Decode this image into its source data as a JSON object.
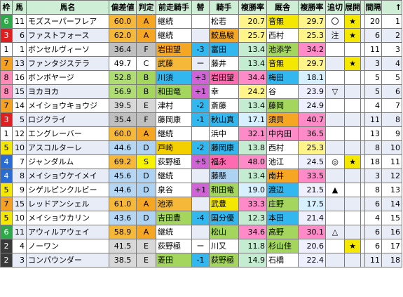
{
  "headers": [
    "枠",
    "馬",
    "馬名",
    "偏差値",
    "判定",
    "前走騎手",
    "替",
    "騎手",
    "複勝率",
    "厩舎",
    "複勝率",
    "追切",
    "展開",
    "",
    "間隔",
    "↑"
  ],
  "frame_colors": {
    "1": "#ffffff",
    "2": "#3a3a3a",
    "3": "#e02020",
    "4": "#2a6cd6",
    "5": "#f5e800",
    "6": "#2fa84a",
    "7": "#f5a020",
    "8": "#ff8ab8"
  },
  "rows": [
    {
      "frame": "6",
      "num": "11",
      "name": "モズスーパーフレア",
      "score": "60.0",
      "grade": "A",
      "prev": "継続",
      "change": "",
      "jockey": "松若",
      "jrate": "20.7",
      "stable": "音無",
      "srate": "29.7",
      "oikiri": "〇",
      "tenkai": "★",
      "gap": "",
      "interval": "20",
      "count": "1"
    },
    {
      "frame": "3",
      "num": "6",
      "name": "ファストフォース",
      "score": "62.0",
      "grade": "A",
      "prev": "継続",
      "change": "",
      "jockey": "鮫島駿",
      "jrate": "25.7",
      "stable": "西村",
      "srate": "25.3",
      "oikiri": "注",
      "tenkai": "★",
      "gap": "",
      "interval": "6",
      "count": "2"
    },
    {
      "frame": "1",
      "num": "1",
      "name": "ボンセルヴィーソ",
      "score": "36.4",
      "grade": "F",
      "prev": "岩田望",
      "change": "-3",
      "jockey": "富田",
      "jrate": "13.4",
      "stable": "池添学",
      "srate": "34.2",
      "oikiri": "",
      "tenkai": "",
      "gap": "",
      "interval": "11",
      "count": "3"
    },
    {
      "frame": "7",
      "num": "13",
      "name": "ファンタジステラ",
      "score": "49.7",
      "grade": "C",
      "prev": "武藤",
      "change": "ー",
      "jockey": "藤井",
      "jrate": "13.4",
      "stable": "音無",
      "srate": "29.7",
      "oikiri": "",
      "tenkai": "★",
      "gap": "",
      "interval": "3",
      "count": "4"
    },
    {
      "frame": "8",
      "num": "16",
      "name": "ボンボヤージ",
      "score": "52.8",
      "grade": "B",
      "prev": "川須",
      "change": "+3",
      "jockey": "岩田望",
      "jrate": "34.4",
      "stable": "梅田",
      "srate": "18.1",
      "oikiri": "",
      "tenkai": "",
      "gap": "",
      "interval": "5",
      "count": "5"
    },
    {
      "frame": "8",
      "num": "15",
      "name": "ヨカヨカ",
      "score": "56.9",
      "grade": "B",
      "prev": "和田竜",
      "change": "+1",
      "jockey": "幸",
      "jrate": "24.2",
      "stable": "谷",
      "srate": "23.9",
      "oikiri": "▽",
      "tenkai": "",
      "gap": "",
      "interval": "5",
      "count": "6"
    },
    {
      "frame": "7",
      "num": "14",
      "name": "メイショウキョウジ",
      "score": "39.5",
      "grade": "E",
      "prev": "津村",
      "change": "-2",
      "jockey": "斎藤",
      "jrate": "13.4",
      "stable": "藤岡",
      "srate": "24.9",
      "oikiri": "",
      "tenkai": "",
      "gap": "",
      "interval": "4",
      "count": "7"
    },
    {
      "frame": "3",
      "num": "5",
      "name": "ロジクライ",
      "score": "35.4",
      "grade": "F",
      "prev": "藤岡康",
      "change": "-1",
      "jockey": "秋山真",
      "jrate": "17.1",
      "stable": "須貝",
      "srate": "40.7",
      "oikiri": "",
      "tenkai": "",
      "gap": "",
      "interval": "11",
      "count": "8"
    },
    {
      "frame": "1",
      "num": "12",
      "name": "エングレーバー",
      "score": "60.0",
      "grade": "A",
      "prev": "継続",
      "change": "",
      "jockey": "浜中",
      "jrate": "32.1",
      "stable": "中内田",
      "srate": "36.5",
      "oikiri": "",
      "tenkai": "",
      "gap": "",
      "interval": "13",
      "count": "9"
    },
    {
      "frame": "5",
      "num": "10",
      "name": "アスコルターレ",
      "score": "44.6",
      "grade": "D",
      "prev": "戸崎",
      "change": "-2",
      "jockey": "藤岡康",
      "jrate": "13.8",
      "stable": "西村",
      "srate": "25.3",
      "oikiri": "",
      "tenkai": "",
      "gap": "",
      "interval": "8",
      "count": "10"
    },
    {
      "frame": "4",
      "num": "7",
      "name": "ジャンダルム",
      "score": "69.2",
      "grade": "S",
      "prev": "荻野極",
      "change": "+5",
      "jockey": "福永",
      "jrate": "48.0",
      "stable": "池江",
      "srate": "24.5",
      "oikiri": "◎",
      "tenkai": "★",
      "gap": "",
      "interval": "18",
      "count": "11"
    },
    {
      "frame": "4",
      "num": "8",
      "name": "メイショウケイメイ",
      "score": "45.6",
      "grade": "D",
      "prev": "継続",
      "change": "",
      "jockey": "藤懸",
      "jrate": "13.4",
      "stable": "南井",
      "srate": "33.5",
      "oikiri": "",
      "tenkai": "",
      "gap": "",
      "interval": "3",
      "count": "12"
    },
    {
      "frame": "5",
      "num": "9",
      "name": "シゲルピンクルビー",
      "score": "44.6",
      "grade": "D",
      "prev": "泉谷",
      "change": "+1",
      "jockey": "和田竜",
      "jrate": "19.0",
      "stable": "渡辺",
      "srate": "21.5",
      "oikiri": "▲",
      "tenkai": "",
      "gap": "",
      "interval": "8",
      "count": "13"
    },
    {
      "frame": "7",
      "num": "15",
      "name": "レッドアンシェル",
      "score": "61.0",
      "grade": "A",
      "prev": "池添",
      "change": "",
      "jockey": "武豊",
      "jrate": "33.3",
      "stable": "庄野",
      "srate": "17.5",
      "oikiri": "",
      "tenkai": "",
      "gap": "",
      "interval": "6",
      "count": "14"
    },
    {
      "frame": "5",
      "num": "10",
      "name": "メイショウカリン",
      "score": "43.6",
      "grade": "D",
      "prev": "吉田豊",
      "change": "-4",
      "jockey": "国分優",
      "jrate": "12.3",
      "stable": "本田",
      "srate": "21.4",
      "oikiri": "",
      "tenkai": "",
      "gap": "",
      "interval": "4",
      "count": "15"
    },
    {
      "frame": "6",
      "num": "11",
      "name": "アウィルアウェイ",
      "score": "58.9",
      "grade": "A",
      "prev": "継続",
      "change": "",
      "jockey": "松山",
      "jrate": "34.6",
      "stable": "高野",
      "srate": "30.1",
      "oikiri": "△",
      "tenkai": "",
      "gap": "",
      "interval": "6",
      "count": "16"
    },
    {
      "frame": "2",
      "num": "4",
      "name": "ノーワン",
      "score": "41.5",
      "grade": "E",
      "prev": "荻野極",
      "change": "ー",
      "jockey": "川又",
      "jrate": "11.8",
      "stable": "杉山佳",
      "srate": "20.6",
      "oikiri": "",
      "tenkai": "★",
      "gap": "",
      "interval": "6",
      "count": "17"
    },
    {
      "frame": "2",
      "num": "3",
      "name": "コンパウンダー",
      "score": "38.5",
      "grade": "E",
      "prev": "菱田",
      "change": "-1",
      "jockey": "荻野極",
      "jrate": "14.9",
      "stable": "石橋",
      "srate": "22.4",
      "oikiri": "",
      "tenkai": "",
      "gap": "",
      "interval": "11",
      "count": "18"
    }
  ]
}
